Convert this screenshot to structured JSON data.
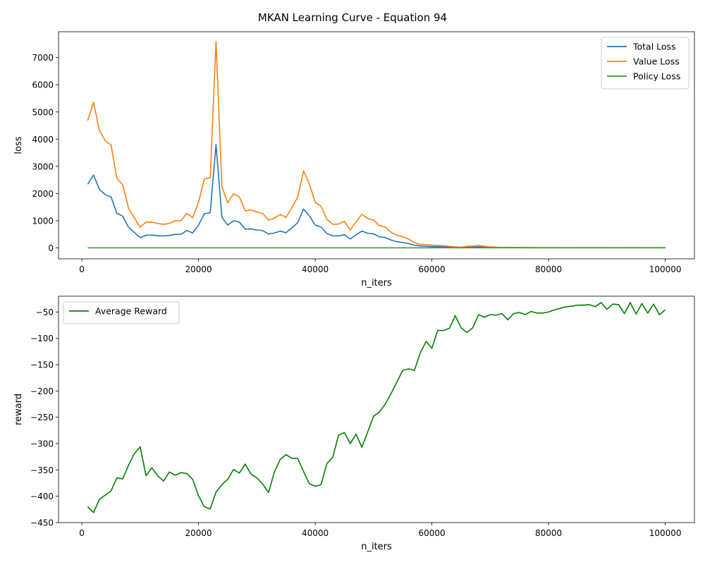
{
  "title": "MKAN Learning Curve - Equation 94",
  "chart_data": [
    {
      "type": "line",
      "xlabel": "n_iters",
      "ylabel": "loss",
      "xlim": [
        -4000,
        105000
      ],
      "ylim": [
        -400,
        7950
      ],
      "xticks": [
        0,
        20000,
        40000,
        60000,
        80000,
        100000
      ],
      "yticks": [
        0,
        1000,
        2000,
        3000,
        4000,
        5000,
        6000,
        7000
      ],
      "legend_position": "top-right",
      "x": [
        1000,
        2000,
        3000,
        4000,
        5000,
        6000,
        7000,
        8000,
        9000,
        10000,
        11000,
        12000,
        13000,
        14000,
        15000,
        16000,
        17000,
        18000,
        19000,
        20000,
        21000,
        22000,
        23000,
        24000,
        25000,
        26000,
        27000,
        28000,
        29000,
        30000,
        31000,
        32000,
        33000,
        34000,
        35000,
        36000,
        37000,
        38000,
        39000,
        40000,
        41000,
        42000,
        43000,
        44000,
        45000,
        46000,
        47000,
        48000,
        49000,
        50000,
        51000,
        52000,
        53000,
        54000,
        55000,
        56000,
        57000,
        58000,
        59000,
        60000,
        61000,
        62000,
        63000,
        64000,
        65000,
        66000,
        67000,
        68000,
        69000,
        70000,
        71000,
        72000,
        73000,
        74000,
        75000,
        76000,
        77000,
        78000,
        79000,
        80000,
        81000,
        82000,
        83000,
        84000,
        85000,
        86000,
        87000,
        88000,
        89000,
        90000,
        91000,
        92000,
        93000,
        94000,
        95000,
        96000,
        97000,
        98000,
        99000,
        100000
      ],
      "series": [
        {
          "name": "Total Loss",
          "color": "#1f77b4",
          "values": [
            2340,
            2680,
            2160,
            1960,
            1880,
            1270,
            1170,
            760,
            570,
            380,
            470,
            470,
            450,
            440,
            460,
            500,
            500,
            640,
            550,
            840,
            1260,
            1290,
            3800,
            1130,
            840,
            1000,
            950,
            690,
            700,
            660,
            640,
            510,
            550,
            620,
            560,
            740,
            930,
            1430,
            1180,
            840,
            770,
            530,
            440,
            440,
            490,
            330,
            480,
            620,
            540,
            520,
            410,
            380,
            290,
            230,
            200,
            160,
            100,
            70,
            60,
            50,
            45,
            40,
            35,
            20,
            15,
            30,
            35,
            40,
            30,
            20,
            15,
            10,
            12,
            10,
            9,
            8,
            8,
            7,
            7,
            6,
            6,
            6,
            5,
            5,
            6,
            6,
            6,
            7,
            6,
            6,
            5,
            5,
            6,
            6,
            6,
            5,
            5,
            5,
            6,
            6
          ]
        },
        {
          "name": "Value Loss",
          "color": "#ff7f0e",
          "values": [
            4680,
            5360,
            4330,
            3940,
            3790,
            2550,
            2330,
            1460,
            1100,
            760,
            950,
            950,
            900,
            870,
            900,
            1000,
            1000,
            1270,
            1110,
            1690,
            2530,
            2590,
            7600,
            2260,
            1660,
            1990,
            1880,
            1360,
            1400,
            1320,
            1270,
            1020,
            1100,
            1230,
            1120,
            1480,
            1870,
            2830,
            2350,
            1680,
            1530,
            1050,
            870,
            880,
            980,
            660,
            960,
            1240,
            1080,
            1030,
            820,
            770,
            570,
            470,
            410,
            330,
            190,
            130,
            120,
            100,
            90,
            80,
            60,
            40,
            30,
            60,
            70,
            90,
            60,
            40,
            30,
            20,
            24,
            20,
            18,
            16,
            16,
            14,
            14,
            12,
            12,
            12,
            10,
            10,
            12,
            12,
            12,
            14,
            12,
            12,
            10,
            10,
            12,
            12,
            12,
            10,
            10,
            10,
            12,
            12
          ]
        },
        {
          "name": "Policy Loss",
          "color": "#2ca02c",
          "values": [
            5,
            5,
            5,
            5,
            5,
            5,
            5,
            5,
            5,
            5,
            5,
            5,
            5,
            5,
            5,
            5,
            5,
            5,
            5,
            5,
            5,
            5,
            5,
            5,
            5,
            5,
            5,
            5,
            5,
            5,
            5,
            5,
            5,
            5,
            5,
            5,
            5,
            5,
            5,
            5,
            5,
            5,
            5,
            5,
            5,
            5,
            5,
            5,
            5,
            5,
            5,
            5,
            5,
            5,
            5,
            5,
            5,
            5,
            5,
            5,
            5,
            5,
            5,
            5,
            5,
            5,
            5,
            5,
            5,
            5,
            5,
            5,
            5,
            5,
            5,
            5,
            5,
            5,
            5,
            5,
            5,
            5,
            5,
            5,
            5,
            5,
            5,
            5,
            5,
            5,
            5,
            5,
            5,
            5,
            5,
            5,
            5,
            5,
            5,
            5
          ]
        }
      ]
    },
    {
      "type": "line",
      "xlabel": "n_iters",
      "ylabel": "reward",
      "xlim": [
        -4000,
        105000
      ],
      "ylim": [
        -450,
        -20
      ],
      "xticks": [
        0,
        20000,
        40000,
        60000,
        80000,
        100000
      ],
      "yticks": [
        -450,
        -400,
        -350,
        -300,
        -250,
        -200,
        -150,
        -100,
        -50
      ],
      "legend_position": "top-left",
      "x": [
        1000,
        2000,
        3000,
        4000,
        5000,
        6000,
        7000,
        8000,
        9000,
        10000,
        11000,
        12000,
        13000,
        14000,
        15000,
        16000,
        17000,
        18000,
        19000,
        20000,
        21000,
        22000,
        23000,
        24000,
        25000,
        26000,
        27000,
        28000,
        29000,
        30000,
        31000,
        32000,
        33000,
        34000,
        35000,
        36000,
        37000,
        38000,
        39000,
        40000,
        41000,
        42000,
        43000,
        44000,
        45000,
        46000,
        47000,
        48000,
        49000,
        50000,
        51000,
        52000,
        53000,
        54000,
        55000,
        56000,
        57000,
        58000,
        59000,
        60000,
        61000,
        62000,
        63000,
        64000,
        65000,
        66000,
        67000,
        68000,
        69000,
        70000,
        71000,
        72000,
        73000,
        74000,
        75000,
        76000,
        77000,
        78000,
        79000,
        80000,
        81000,
        82000,
        83000,
        84000,
        85000,
        86000,
        87000,
        88000,
        89000,
        90000,
        91000,
        92000,
        93000,
        94000,
        95000,
        96000,
        97000,
        98000,
        99000,
        100000
      ],
      "series": [
        {
          "name": "Average Reward",
          "color": "#008000",
          "values": [
            -420,
            -431,
            -406,
            -398,
            -390,
            -365,
            -367,
            -341,
            -319,
            -306,
            -361,
            -346,
            -361,
            -371,
            -354,
            -360,
            -355,
            -357,
            -368,
            -399,
            -420,
            -424,
            -392,
            -378,
            -368,
            -349,
            -356,
            -339,
            -358,
            -365,
            -377,
            -393,
            -354,
            -330,
            -321,
            -328,
            -328,
            -353,
            -376,
            -381,
            -378,
            -338,
            -326,
            -284,
            -279,
            -300,
            -282,
            -307,
            -278,
            -248,
            -240,
            -225,
            -205,
            -183,
            -161,
            -158,
            -161,
            -128,
            -106,
            -119,
            -85,
            -85,
            -81,
            -57,
            -80,
            -89,
            -80,
            -55,
            -60,
            -55,
            -56,
            -53,
            -65,
            -53,
            -51,
            -55,
            -49,
            -52,
            -52,
            -50,
            -46,
            -43,
            -40,
            -39,
            -37,
            -37,
            -36,
            -40,
            -32,
            -45,
            -35,
            -36,
            -53,
            -32,
            -54,
            -34,
            -52,
            -35,
            -55,
            -46
          ]
        }
      ]
    }
  ]
}
